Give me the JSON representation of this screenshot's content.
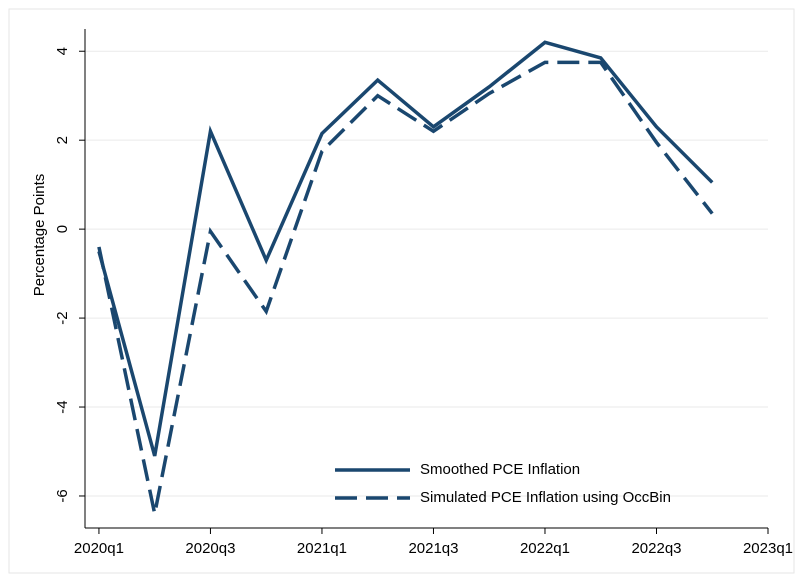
{
  "chart_data": {
    "type": "line",
    "y_label": "Percentage Points",
    "x": [
      240,
      241,
      242,
      243,
      244,
      245,
      246,
      247,
      248,
      249,
      250,
      251
    ],
    "series": [
      {
        "name": "Smoothed PCE Inflation",
        "color": "#1a476f",
        "dash": false,
        "values": [
          -0.5,
          -5.1,
          2.2,
          -0.7,
          2.15,
          3.35,
          2.3,
          3.2,
          4.2,
          3.85,
          2.3,
          1.05
        ]
      },
      {
        "name": "Simulated PCE Inflation using OccBin",
        "color": "#1a476f",
        "dash": true,
        "values": [
          -0.4,
          -6.4,
          -0.05,
          -1.85,
          1.75,
          3.0,
          2.2,
          3.05,
          3.75,
          3.75,
          1.95,
          0.35
        ]
      }
    ],
    "xlim": [
      239.75,
      252
    ],
    "xticks": [
      {
        "value": 240,
        "label": "2020q1"
      },
      {
        "value": 242,
        "label": "2020q3"
      },
      {
        "value": 244,
        "label": "2021q1"
      },
      {
        "value": 246,
        "label": "2021q3"
      },
      {
        "value": 248,
        "label": "2022q1"
      },
      {
        "value": 250,
        "label": "2022q3"
      },
      {
        "value": 252,
        "label": "2023q1"
      }
    ],
    "ylim": [
      -6.72,
      4.5
    ],
    "yticks": [
      -6,
      -4,
      -2,
      0,
      2,
      4
    ],
    "grid": true,
    "legend": "lower-right"
  }
}
